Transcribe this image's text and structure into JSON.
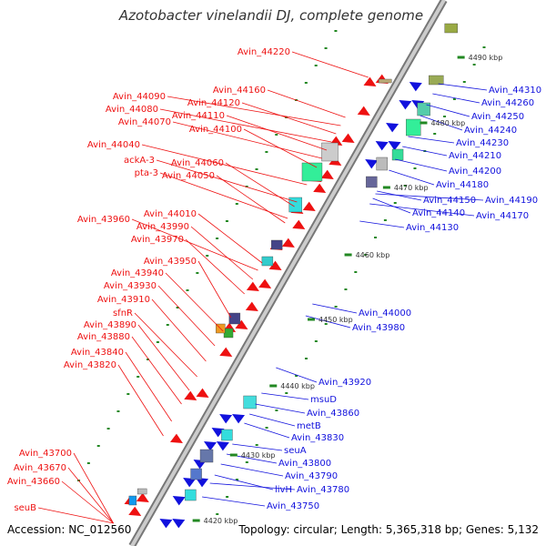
{
  "title": "Azotobacter vinelandii DJ, complete genome",
  "accession": "Accession: NC_012560",
  "summary": "Topology: circular; Length: 5,365,318 bp; Genes: 5,132",
  "ticks": [
    "4420 kbp",
    "4430 kbp",
    "4440 kbp",
    "4450 kbp",
    "4460 kbp",
    "4470 kbp",
    "4480 kbp",
    "4490 kbp"
  ],
  "reverse_genes": [
    "Avin_44220",
    "Avin_44160",
    "Avin_44090",
    "Avin_44120",
    "Avin_44080",
    "Avin_44110",
    "Avin_44070",
    "Avin_44100",
    "Avin_44040",
    "ackA-3",
    "Avin_44060",
    "pta-3",
    "Avin_44050",
    "Avin_44010",
    "Avin_43960",
    "Avin_43990",
    "Avin_43970",
    "Avin_43950",
    "Avin_43940",
    "Avin_43930",
    "Avin_43910",
    "sfnR",
    "Avin_43890",
    "Avin_43880",
    "Avin_43840",
    "Avin_43820",
    "Avin_43700",
    "Avin_43670",
    "Avin_43660",
    "seuB"
  ],
  "forward_genes": [
    "Avin_44310",
    "Avin_44260",
    "Avin_44250",
    "Avin_44240",
    "Avin_44230",
    "Avin_44210",
    "Avin_44200",
    "Avin_44180",
    "Avin_44190",
    "Avin_44150",
    "Avin_44170",
    "Avin_44140",
    "Avin_44130",
    "Avin_44000",
    "Avin_43980",
    "Avin_43920",
    "msuD",
    "Avin_43860",
    "metB",
    "Avin_43830",
    "seuA",
    "Avin_43800",
    "Avin_43790",
    "livH",
    "Avin_43780",
    "Avin_43750"
  ],
  "colors": {
    "reverse": "#ee1111",
    "forward": "#1111dd",
    "axis": "#999999",
    "rna": "#228822"
  }
}
